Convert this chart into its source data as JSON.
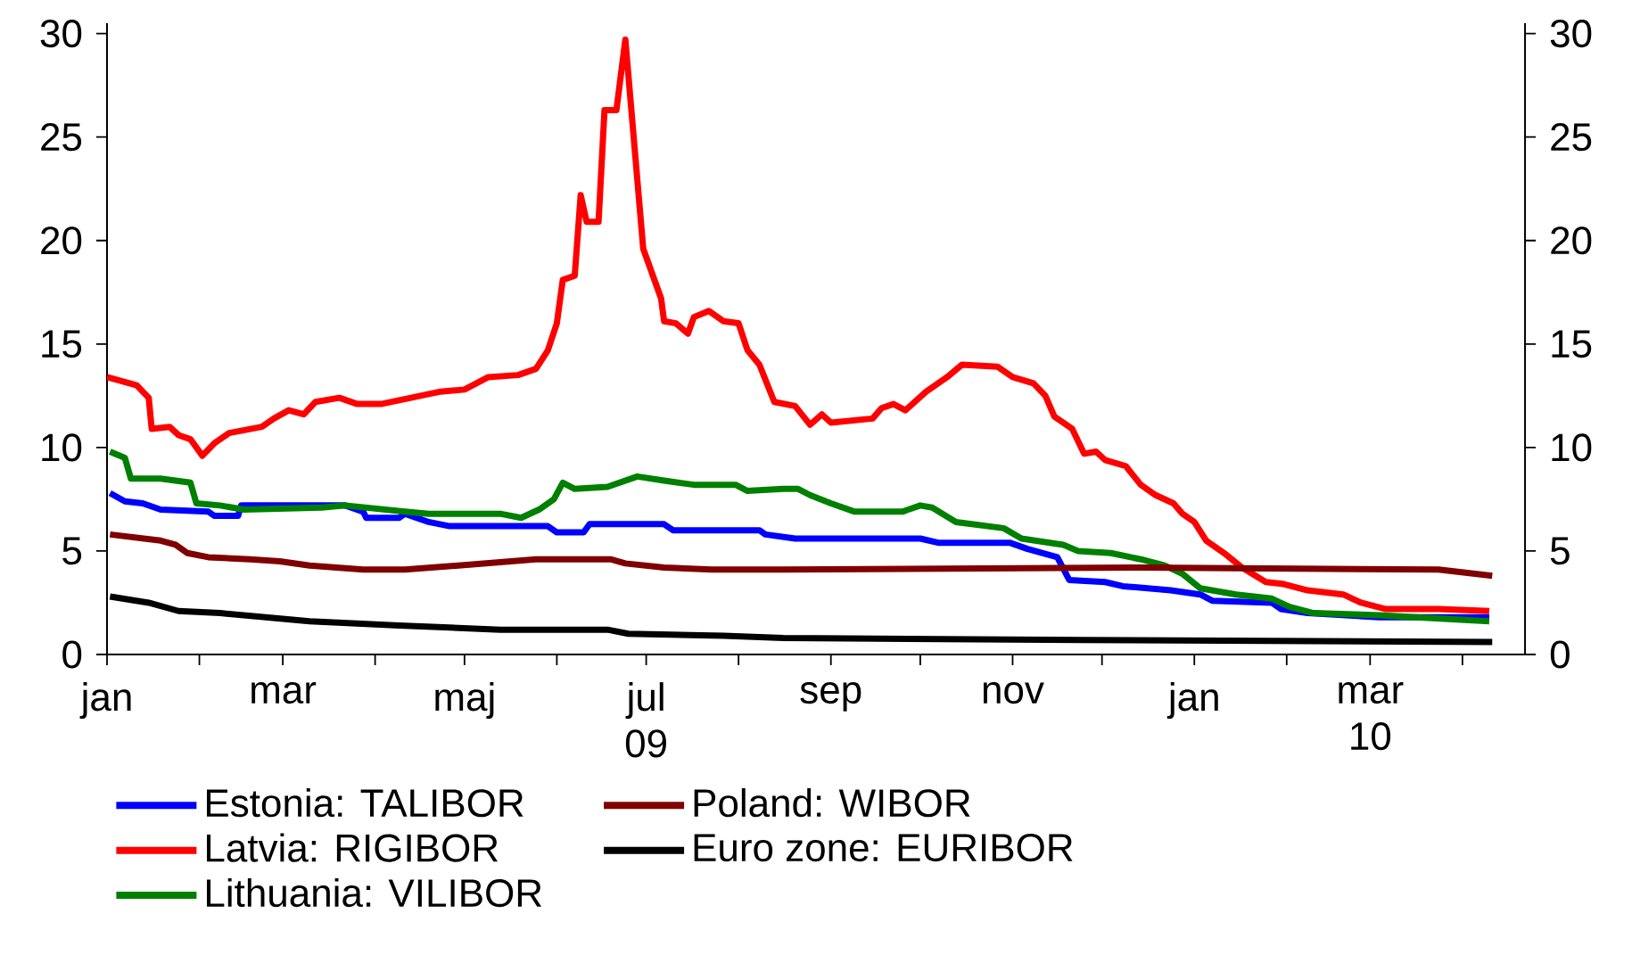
{
  "chart_data": {
    "type": "line",
    "xlim": [
      "2009-01-01",
      "2010-04-22"
    ],
    "ylim": [
      0,
      30.5
    ],
    "yticks": [
      0,
      5,
      10,
      15,
      20,
      25,
      30
    ],
    "y2lim": [
      0,
      30.5
    ],
    "y2ticks": [
      0,
      5,
      10,
      15,
      20,
      25,
      30
    ],
    "xticks": [
      {
        "value": "2009-01-01",
        "label": "jan"
      },
      {
        "value": "2009-02-01",
        "label": null
      },
      {
        "value": "2009-03-01",
        "label": "mar"
      },
      {
        "value": "2009-04-01",
        "label": null
      },
      {
        "value": "2009-05-01",
        "label": "maj"
      },
      {
        "value": "2009-06-01",
        "label": null
      },
      {
        "value": "2009-07-01",
        "label": "jul 09"
      },
      {
        "value": "2009-08-01",
        "label": null
      },
      {
        "value": "2009-09-01",
        "label": "sep"
      },
      {
        "value": "2009-10-01",
        "label": null
      },
      {
        "value": "2009-11-01",
        "label": "nov"
      },
      {
        "value": "2009-12-01",
        "label": null
      },
      {
        "value": "2010-01-01",
        "label": "jan"
      },
      {
        "value": "2010-02-01",
        "label": null
      },
      {
        "value": "2010-03-01",
        "label": "mar 10"
      },
      {
        "value": "2010-04-01",
        "label": null
      }
    ],
    "legend": "bottom",
    "marker": "none",
    "line_style": "solid",
    "series": [
      {
        "name": "Estonia: TALIBOR",
        "color": "#0000ff",
        "x": [
          "2009-01-02",
          "2009-01-07",
          "2009-01-13",
          "2009-01-19",
          "2009-02-04",
          "2009-02-06",
          "2009-02-14",
          "2009-02-15",
          "2009-03-22",
          "2009-03-28",
          "2009-03-29",
          "2009-04-09",
          "2009-04-11",
          "2009-04-19",
          "2009-04-26",
          "2009-05-29",
          "2009-06-01",
          "2009-06-10",
          "2009-06-12",
          "2009-07-07",
          "2009-07-10",
          "2009-08-08",
          "2009-08-10",
          "2009-08-20",
          "2009-08-22",
          "2009-10-01",
          "2009-10-07",
          "2009-10-31",
          "2009-11-06",
          "2009-11-16",
          "2009-11-20",
          "2009-12-02",
          "2009-12-08",
          "2009-12-24",
          "2010-01-03",
          "2010-01-07",
          "2010-01-27",
          "2010-01-30",
          "2010-02-08",
          "2010-03-04",
          "2010-04-10"
        ],
        "values": [
          7.8,
          7.4,
          7.3,
          7.0,
          6.9,
          6.7,
          6.7,
          7.2,
          7.2,
          6.9,
          6.6,
          6.6,
          6.8,
          6.4,
          6.2,
          6.2,
          5.9,
          5.9,
          6.3,
          6.3,
          6.0,
          6.0,
          5.8,
          5.6,
          5.6,
          5.6,
          5.4,
          5.4,
          5.1,
          4.7,
          3.6,
          3.5,
          3.3,
          3.1,
          2.9,
          2.6,
          2.5,
          2.2,
          2.0,
          1.8,
          1.8
        ]
      },
      {
        "name": "Latvia: RIGIBOR",
        "color": "#ff0000",
        "x": [
          "2009-01-01",
          "2009-01-11",
          "2009-01-15",
          "2009-01-16",
          "2009-01-22",
          "2009-01-25",
          "2009-01-29",
          "2009-02-02",
          "2009-02-06",
          "2009-02-11",
          "2009-02-22",
          "2009-02-26",
          "2009-03-03",
          "2009-03-08",
          "2009-03-12",
          "2009-03-20",
          "2009-03-26",
          "2009-04-03",
          "2009-04-13",
          "2009-04-23",
          "2009-05-01",
          "2009-05-09",
          "2009-05-19",
          "2009-05-25",
          "2009-05-29",
          "2009-06-01",
          "2009-06-03",
          "2009-06-07",
          "2009-06-09",
          "2009-06-11",
          "2009-06-15",
          "2009-06-17",
          "2009-06-21",
          "2009-06-24",
          "2009-06-30",
          "2009-07-06",
          "2009-07-07",
          "2009-07-11",
          "2009-07-15",
          "2009-07-17",
          "2009-07-22",
          "2009-07-27",
          "2009-08-01",
          "2009-08-04",
          "2009-08-08",
          "2009-08-13",
          "2009-08-20",
          "2009-08-25",
          "2009-08-29",
          "2009-09-01",
          "2009-09-15",
          "2009-09-18",
          "2009-09-22",
          "2009-09-26",
          "2009-10-03",
          "2009-10-10",
          "2009-10-15",
          "2009-10-27",
          "2009-11-01",
          "2009-11-08",
          "2009-11-12",
          "2009-11-15",
          "2009-11-21",
          "2009-11-25",
          "2009-11-29",
          "2009-12-02",
          "2009-12-09",
          "2009-12-14",
          "2009-12-19",
          "2009-12-25",
          "2009-12-28",
          "2010-01-01",
          "2010-01-05",
          "2010-01-11",
          "2010-01-17",
          "2010-01-25",
          "2010-01-31",
          "2010-02-08",
          "2010-02-20",
          "2010-02-26",
          "2010-03-06",
          "2010-03-24",
          "2010-04-10"
        ],
        "values": [
          13.4,
          13.0,
          12.4,
          10.9,
          11.0,
          10.6,
          10.4,
          9.6,
          10.2,
          10.7,
          11.0,
          11.4,
          11.8,
          11.6,
          12.2,
          12.4,
          12.1,
          12.1,
          12.4,
          12.7,
          12.8,
          13.4,
          13.5,
          13.8,
          14.7,
          16.0,
          18.1,
          18.3,
          22.2,
          20.9,
          20.9,
          26.3,
          26.3,
          29.7,
          19.6,
          17.2,
          16.1,
          16.0,
          15.5,
          16.3,
          16.6,
          16.1,
          16.0,
          14.7,
          14.0,
          12.2,
          12.0,
          11.1,
          11.6,
          11.2,
          11.4,
          11.9,
          12.1,
          11.8,
          12.7,
          13.4,
          14.0,
          13.9,
          13.4,
          13.1,
          12.5,
          11.5,
          10.9,
          9.7,
          9.8,
          9.4,
          9.1,
          8.2,
          7.7,
          7.3,
          6.8,
          6.4,
          5.5,
          4.9,
          4.2,
          3.5,
          3.4,
          3.1,
          2.9,
          2.5,
          2.2,
          2.2,
          2.1
        ]
      },
      {
        "name": "Lithuania: VILIBOR",
        "color": "#008000",
        "x": [
          "2009-01-02",
          "2009-01-07",
          "2009-01-09",
          "2009-01-19",
          "2009-01-29",
          "2009-01-31",
          "2009-02-08",
          "2009-02-16",
          "2009-03-14",
          "2009-03-22",
          "2009-04-11",
          "2009-04-19",
          "2009-05-13",
          "2009-05-20",
          "2009-05-26",
          "2009-05-31",
          "2009-06-03",
          "2009-06-07",
          "2009-06-18",
          "2009-06-28",
          "2009-07-07",
          "2009-07-17",
          "2009-07-31",
          "2009-08-04",
          "2009-08-16",
          "2009-08-21",
          "2009-08-25",
          "2009-09-01",
          "2009-09-09",
          "2009-09-25",
          "2009-10-01",
          "2009-10-05",
          "2009-10-13",
          "2009-10-29",
          "2009-11-04",
          "2009-11-18",
          "2009-11-23",
          "2009-12-04",
          "2009-12-14",
          "2009-12-22",
          "2009-12-28",
          "2010-01-03",
          "2010-01-15",
          "2010-01-27",
          "2010-02-02",
          "2010-02-10",
          "2010-03-04",
          "2010-04-10"
        ],
        "values": [
          9.8,
          9.5,
          8.5,
          8.5,
          8.3,
          7.3,
          7.2,
          7.0,
          7.1,
          7.2,
          6.9,
          6.8,
          6.8,
          6.6,
          7.0,
          7.5,
          8.3,
          8.0,
          8.1,
          8.6,
          8.4,
          8.2,
          8.2,
          7.9,
          8.0,
          8.0,
          7.7,
          7.3,
          6.9,
          6.9,
          7.2,
          7.1,
          6.4,
          6.1,
          5.6,
          5.3,
          5.0,
          4.9,
          4.6,
          4.3,
          3.9,
          3.2,
          2.9,
          2.7,
          2.3,
          2.0,
          1.9,
          1.6
        ]
      },
      {
        "name": "Poland: WIBOR",
        "color": "#800000",
        "x": [
          "2009-01-02",
          "2009-01-19",
          "2009-01-24",
          "2009-01-28",
          "2009-02-04",
          "2009-02-18",
          "2009-02-28",
          "2009-03-10",
          "2009-03-28",
          "2009-04-11",
          "2009-04-29",
          "2009-05-25",
          "2009-06-19",
          "2009-06-24",
          "2009-07-07",
          "2009-07-23",
          "2009-08-16",
          "2009-12-14",
          "2010-03-24",
          "2010-04-11"
        ],
        "values": [
          5.8,
          5.5,
          5.3,
          4.9,
          4.7,
          4.6,
          4.5,
          4.3,
          4.1,
          4.1,
          4.3,
          4.6,
          4.6,
          4.4,
          4.2,
          4.1,
          4.1,
          4.2,
          4.1,
          3.8
        ]
      },
      {
        "name": "Euro zone: EURIBOR",
        "color": "#000000",
        "x": [
          "2009-01-02",
          "2009-01-15",
          "2009-01-25",
          "2009-02-08",
          "2009-03-10",
          "2009-04-09",
          "2009-05-13",
          "2009-06-18",
          "2009-06-25",
          "2009-07-27",
          "2009-08-16",
          "2009-11-24",
          "2010-04-11"
        ],
        "values": [
          2.8,
          2.5,
          2.1,
          2.0,
          1.6,
          1.4,
          1.2,
          1.2,
          1.0,
          0.9,
          0.8,
          0.7,
          0.6
        ]
      }
    ]
  }
}
